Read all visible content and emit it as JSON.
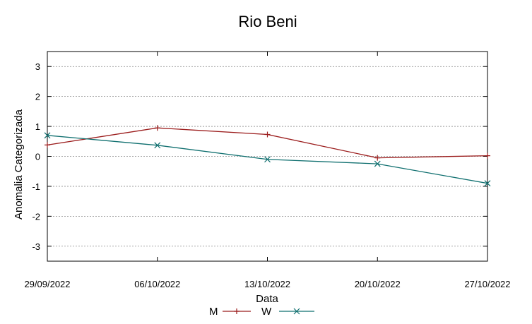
{
  "chart_data": {
    "type": "line",
    "title": "Rio Beni",
    "xlabel": "Data",
    "ylabel": "Anomalia Categorizada",
    "ylim": [
      -3.5,
      3.5
    ],
    "yticks": [
      3,
      2,
      1,
      0,
      -1,
      -2,
      -3
    ],
    "ytick_labels": [
      "3",
      "2",
      "1",
      "0",
      "-1",
      "-2",
      "-3"
    ],
    "x": [
      "29/09/2022",
      "06/10/2022",
      "13/10/2022",
      "20/10/2022",
      "27/10/2022"
    ],
    "grid": true,
    "legend_position": "bottom-center",
    "series": [
      {
        "name": "M",
        "color": "#9b1c1c",
        "marker": "plus",
        "values": [
          0.38,
          0.95,
          0.73,
          -0.05,
          0.02
        ]
      },
      {
        "name": "W",
        "color": "#0f6f6f",
        "marker": "cross",
        "values": [
          0.7,
          0.37,
          -0.1,
          -0.25,
          -0.9
        ]
      }
    ]
  }
}
